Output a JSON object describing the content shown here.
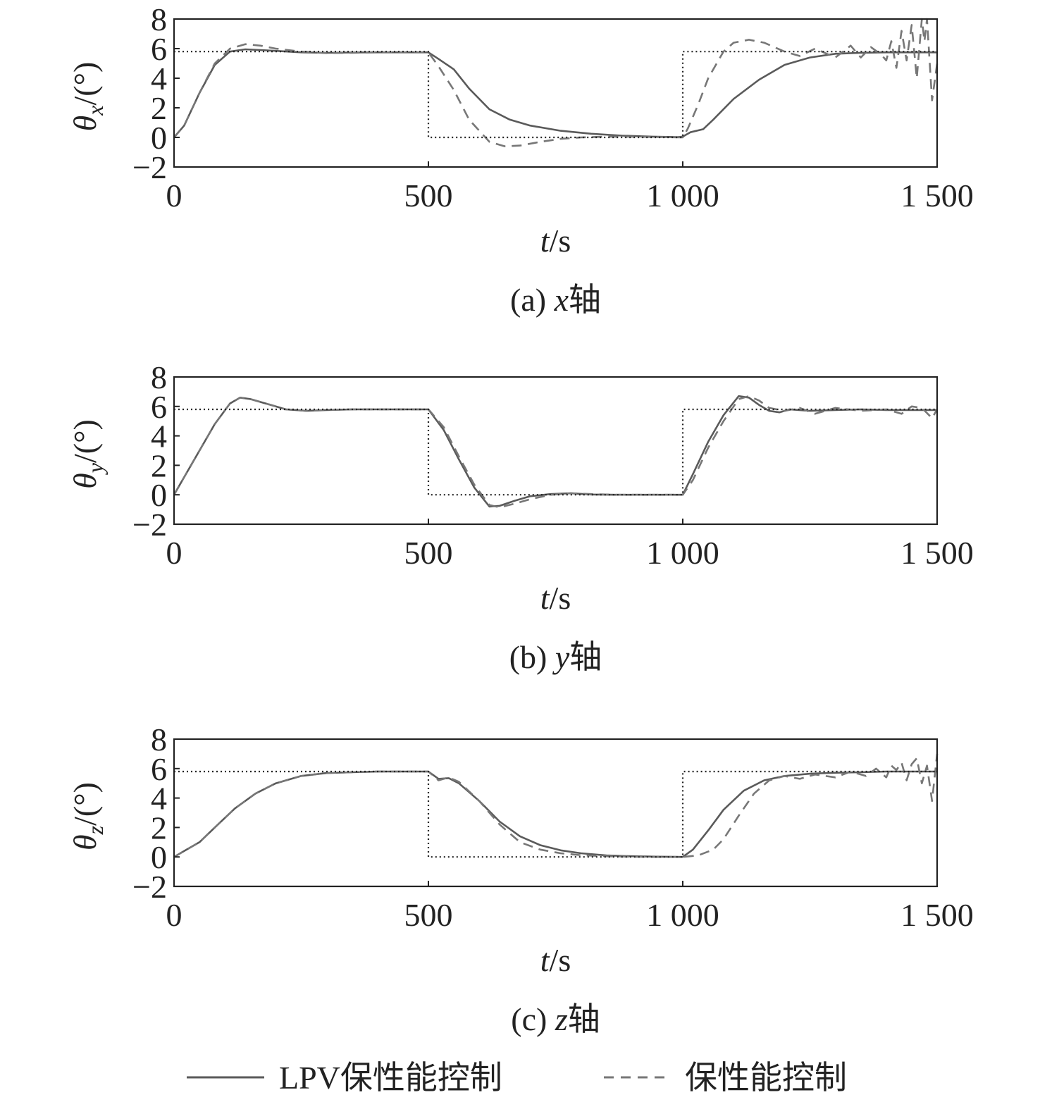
{
  "chart_data": [
    {
      "type": "line",
      "ylabel_main": "θ",
      "ylabel_sub": "x",
      "ylabel_unit": "/(°)",
      "xlabel_main": "t",
      "xlabel_unit": "/s",
      "caption_prefix": "(a) ",
      "caption_var": "x",
      "caption_suffix": "轴",
      "xlim": [
        0,
        1500
      ],
      "ylim": [
        -2,
        8
      ],
      "xticks": [
        0,
        500,
        1000,
        1500
      ],
      "xtick_labels": [
        "0",
        "500",
        "1 000",
        "1 500"
      ],
      "yticks": [
        8,
        6,
        4,
        2,
        0,
        -2
      ],
      "ytick_labels": [
        "8",
        "6",
        "4",
        "2",
        "0",
        "−2"
      ],
      "grid": false,
      "series": [
        {
          "name": "LPV保性能控制",
          "style": "solid",
          "color": "#5a5a5a",
          "x": [
            0,
            20,
            50,
            80,
            110,
            140,
            170,
            200,
            250,
            300,
            350,
            400,
            450,
            500,
            520,
            550,
            580,
            620,
            660,
            700,
            760,
            820,
            880,
            940,
            990,
            1000,
            1015,
            1040,
            1060,
            1100,
            1150,
            1200,
            1250,
            1300,
            1350,
            1400,
            1450,
            1500
          ],
          "y": [
            0,
            0.8,
            3.0,
            4.9,
            5.8,
            5.95,
            5.9,
            5.85,
            5.75,
            5.72,
            5.74,
            5.75,
            5.75,
            5.75,
            5.3,
            4.6,
            3.3,
            1.9,
            1.2,
            0.8,
            0.45,
            0.25,
            0.12,
            0.05,
            0.02,
            0.05,
            0.35,
            0.55,
            1.2,
            2.6,
            3.9,
            4.9,
            5.4,
            5.65,
            5.72,
            5.75,
            5.75,
            5.75
          ]
        },
        {
          "name": "保性能控制",
          "style": "dashed",
          "color": "#777777",
          "accent": "#b03060",
          "x": [
            0,
            20,
            50,
            80,
            110,
            140,
            170,
            200,
            250,
            300,
            350,
            400,
            450,
            500,
            520,
            550,
            580,
            620,
            650,
            680,
            720,
            760,
            800,
            850,
            900,
            950,
            1000,
            1010,
            1030,
            1050,
            1080,
            1100,
            1130,
            1160,
            1200,
            1230,
            1260,
            1300,
            1330,
            1350,
            1370,
            1390,
            1400,
            1410,
            1420,
            1430,
            1440,
            1450,
            1460,
            1470,
            1475,
            1480,
            1490,
            1500
          ],
          "y": [
            0,
            0.8,
            3.0,
            5.0,
            6.0,
            6.3,
            6.2,
            6.0,
            5.8,
            5.7,
            5.72,
            5.75,
            5.75,
            5.75,
            4.8,
            3.2,
            1.2,
            -0.3,
            -0.6,
            -0.55,
            -0.3,
            -0.1,
            0.0,
            0.05,
            0.05,
            0.03,
            0.0,
            0.6,
            2.2,
            4.0,
            5.8,
            6.4,
            6.6,
            6.4,
            5.8,
            5.5,
            6.0,
            5.4,
            6.2,
            5.4,
            6.1,
            5.6,
            5.2,
            6.5,
            4.7,
            7.2,
            5.2,
            7.6,
            4.0,
            8.0,
            6.5,
            8.0,
            2.5,
            5.0
          ]
        },
        {
          "name": "reference",
          "style": "dotted",
          "color": "#222222",
          "x": [
            0,
            500,
            500,
            1000,
            1000,
            1500
          ],
          "y": [
            5.8,
            5.8,
            0,
            0,
            5.8,
            5.8
          ]
        }
      ]
    },
    {
      "type": "line",
      "ylabel_main": "θ",
      "ylabel_sub": "y",
      "ylabel_unit": "/(°)",
      "xlabel_main": "t",
      "xlabel_unit": "/s",
      "caption_prefix": "(b) ",
      "caption_var": "y",
      "caption_suffix": "轴",
      "xlim": [
        0,
        1500
      ],
      "ylim": [
        -2,
        8
      ],
      "xticks": [
        0,
        500,
        1000,
        1500
      ],
      "xtick_labels": [
        "0",
        "500",
        "1 000",
        "1 500"
      ],
      "yticks": [
        8,
        6,
        4,
        2,
        0,
        -2
      ],
      "ytick_labels": [
        "8",
        "6",
        "4",
        "2",
        "0",
        "−2"
      ],
      "grid": false,
      "series": [
        {
          "name": "LPV保性能控制",
          "style": "solid",
          "color": "#5a5a5a",
          "x": [
            0,
            20,
            50,
            80,
            110,
            130,
            150,
            180,
            220,
            260,
            300,
            350,
            400,
            450,
            500,
            530,
            560,
            590,
            620,
            640,
            670,
            700,
            740,
            780,
            820,
            870,
            920,
            970,
            1000,
            1020,
            1050,
            1080,
            1110,
            1130,
            1150,
            1170,
            1190,
            1210,
            1250,
            1300,
            1350,
            1400,
            1450,
            1500
          ],
          "y": [
            0,
            1.2,
            3.0,
            4.8,
            6.2,
            6.6,
            6.5,
            6.2,
            5.8,
            5.7,
            5.75,
            5.8,
            5.8,
            5.8,
            5.8,
            4.4,
            2.4,
            0.5,
            -0.8,
            -0.75,
            -0.4,
            -0.1,
            0.05,
            0.1,
            0.02,
            0.0,
            0.0,
            0.0,
            0.0,
            1.4,
            3.6,
            5.4,
            6.7,
            6.6,
            6.1,
            5.7,
            5.6,
            5.8,
            5.7,
            5.75,
            5.8,
            5.75,
            5.75,
            5.75
          ]
        },
        {
          "name": "保性能控制",
          "style": "dashed",
          "color": "#777777",
          "accent": "#b03060",
          "x": [
            0,
            20,
            50,
            80,
            110,
            130,
            150,
            180,
            220,
            260,
            300,
            350,
            400,
            450,
            500,
            530,
            560,
            590,
            620,
            640,
            670,
            700,
            740,
            780,
            820,
            870,
            920,
            970,
            1000,
            1020,
            1050,
            1080,
            1110,
            1130,
            1150,
            1170,
            1200,
            1230,
            1260,
            1300,
            1350,
            1400,
            1430,
            1450,
            1470,
            1490,
            1500
          ],
          "y": [
            0,
            1.2,
            3.0,
            4.8,
            6.2,
            6.6,
            6.5,
            6.2,
            5.8,
            5.7,
            5.75,
            5.8,
            5.8,
            5.8,
            5.8,
            4.6,
            2.6,
            0.7,
            -0.7,
            -0.85,
            -0.6,
            -0.3,
            0.0,
            0.1,
            0.05,
            0.0,
            0.0,
            0.0,
            0.0,
            1.0,
            3.2,
            5.0,
            6.5,
            6.7,
            6.4,
            5.9,
            5.7,
            5.9,
            5.5,
            5.9,
            5.7,
            5.8,
            5.5,
            6.0,
            5.9,
            5.2,
            5.8
          ]
        },
        {
          "name": "reference",
          "style": "dotted",
          "color": "#222222",
          "x": [
            0,
            500,
            500,
            1000,
            1000,
            1500
          ],
          "y": [
            5.8,
            5.8,
            0,
            0,
            5.8,
            5.8
          ]
        }
      ]
    },
    {
      "type": "line",
      "ylabel_main": "θ",
      "ylabel_sub": "z",
      "ylabel_unit": "/(°)",
      "xlabel_main": "t",
      "xlabel_unit": "/s",
      "caption_prefix": "(c) ",
      "caption_var": "z",
      "caption_suffix": "轴",
      "xlim": [
        0,
        1500
      ],
      "ylim": [
        -2,
        8
      ],
      "xticks": [
        0,
        500,
        1000,
        1500
      ],
      "xtick_labels": [
        "0",
        "500",
        "1 000",
        "1 500"
      ],
      "yticks": [
        8,
        6,
        4,
        2,
        0,
        -2
      ],
      "ytick_labels": [
        "8",
        "6",
        "4",
        "2",
        "0",
        "−2"
      ],
      "grid": false,
      "series": [
        {
          "name": "LPV保性能控制",
          "style": "solid",
          "color": "#5a5a5a",
          "x": [
            0,
            20,
            50,
            80,
            120,
            160,
            200,
            250,
            300,
            350,
            400,
            450,
            500,
            520,
            540,
            560,
            600,
            640,
            680,
            720,
            760,
            800,
            850,
            900,
            950,
            1000,
            1020,
            1050,
            1080,
            1120,
            1160,
            1200,
            1250,
            1300,
            1350,
            1400,
            1450,
            1500
          ],
          "y": [
            0,
            0.4,
            1.0,
            2.0,
            3.3,
            4.3,
            5.0,
            5.5,
            5.7,
            5.75,
            5.8,
            5.8,
            5.8,
            5.3,
            5.35,
            5.0,
            3.8,
            2.4,
            1.4,
            0.8,
            0.45,
            0.25,
            0.1,
            0.05,
            0.02,
            0.0,
            0.5,
            1.8,
            3.2,
            4.5,
            5.2,
            5.5,
            5.65,
            5.72,
            5.75,
            5.8,
            5.8,
            5.8
          ]
        },
        {
          "name": "保性能控制",
          "style": "dashed",
          "color": "#777777",
          "accent": "#b03060",
          "x": [
            0,
            20,
            50,
            80,
            120,
            160,
            200,
            250,
            300,
            350,
            400,
            450,
            500,
            520,
            540,
            560,
            600,
            640,
            680,
            720,
            760,
            800,
            850,
            900,
            950,
            1000,
            1030,
            1060,
            1080,
            1110,
            1140,
            1170,
            1200,
            1230,
            1260,
            1300,
            1330,
            1360,
            1380,
            1400,
            1410,
            1420,
            1430,
            1440,
            1450,
            1460,
            1470,
            1480,
            1490,
            1500
          ],
          "y": [
            0,
            0.4,
            1.0,
            2.0,
            3.3,
            4.3,
            5.0,
            5.5,
            5.7,
            5.75,
            5.8,
            5.8,
            5.8,
            5.2,
            5.4,
            5.1,
            3.8,
            2.2,
            1.0,
            0.5,
            0.25,
            0.12,
            0.05,
            0.02,
            0.0,
            0.0,
            0.1,
            0.5,
            1.2,
            2.8,
            4.3,
            5.2,
            5.5,
            5.3,
            5.6,
            5.4,
            5.8,
            5.5,
            6.0,
            5.4,
            6.2,
            5.9,
            6.4,
            5.2,
            6.3,
            6.7,
            5.0,
            6.2,
            3.8,
            7.0
          ]
        },
        {
          "name": "reference",
          "style": "dotted",
          "color": "#222222",
          "x": [
            0,
            500,
            500,
            1000,
            1000,
            1500
          ],
          "y": [
            5.8,
            5.8,
            0,
            0,
            5.8,
            5.8
          ]
        }
      ]
    }
  ],
  "legend": {
    "solid_label": "LPV保性能控制",
    "dashed_label": "保性能控制"
  }
}
